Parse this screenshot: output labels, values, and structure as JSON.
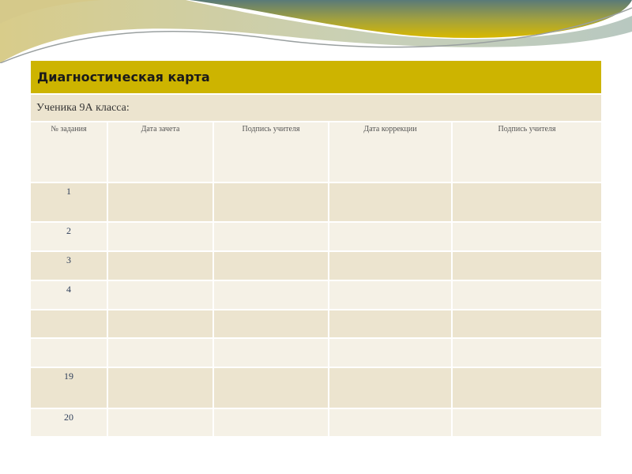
{
  "title": "Диагностическая карта",
  "subtitle": "Ученика 9А класса:",
  "headers": [
    "№ задания",
    "Дата зачета",
    "Подпись учителя",
    "Дата коррекции",
    "Подпись учителя"
  ],
  "rows": [
    "1",
    "2",
    "3",
    "4",
    "",
    "",
    "19",
    "20"
  ],
  "colors": {
    "title_bar": "#cdb400",
    "row_dark": "#ece4cf",
    "row_light": "#f5f1e6"
  }
}
